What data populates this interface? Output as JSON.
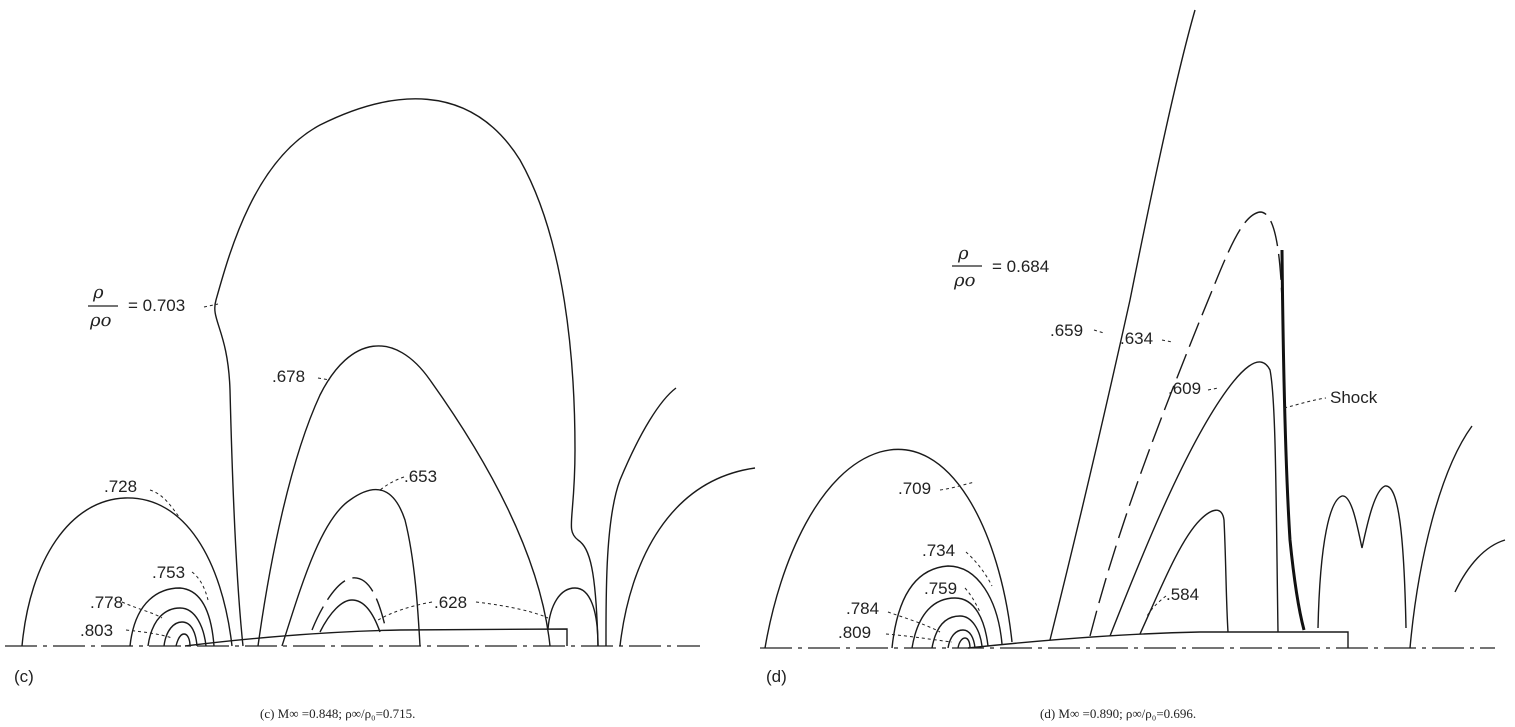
{
  "panel_c": {
    "tag": "(c)",
    "caption": "(c)  M∞ =0.848;  ρ∞/ρ₀=0.715.",
    "ratio_numerator": "ρ",
    "ratio_denominator": "ρo",
    "ratio_value": "= 0.703",
    "contours": {
      "c678": ".678",
      "c728": ".728",
      "c653": ".653",
      "c753": ".753",
      "c778": ".778",
      "c803": ".803",
      "c628": ".628"
    }
  },
  "panel_d": {
    "tag": "(d)",
    "caption": "(d)  M∞ =0.890;  ρ∞/ρ₀=0.696.",
    "ratio_numerator": "ρ",
    "ratio_denominator": "ρo",
    "ratio_value": "= 0.684",
    "contours": {
      "c659": ".659",
      "c634": ".634",
      "c609": ".609",
      "c709": ".709",
      "c734": ".734",
      "c759": ".759",
      "c784": ".784",
      "c809": ".809",
      "c584": ".584"
    },
    "shock_label": "Shock"
  }
}
